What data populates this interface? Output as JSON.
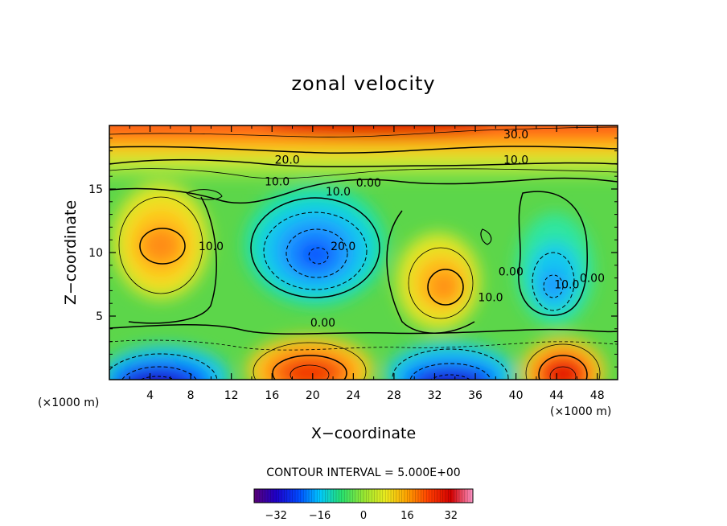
{
  "chart_data": {
    "type": "heatmap",
    "subtype": "filled-contour",
    "title": "zonal velocity",
    "xlabel": "X−coordinate",
    "ylabel": "Z−coordinate",
    "x_unit_left": "(×1000 m)",
    "x_unit_right": "(×1000 m)",
    "xlim": [
      0,
      50
    ],
    "ylim": [
      0,
      20
    ],
    "x_ticks": [
      4,
      8,
      12,
      16,
      20,
      24,
      28,
      32,
      36,
      40,
      44,
      48
    ],
    "x_tick_labels": [
      "4",
      "8",
      "12",
      "16",
      "20",
      "24",
      "28",
      "32",
      "36",
      "40",
      "44",
      "48"
    ],
    "y_ticks": [
      5,
      10,
      15
    ],
    "y_tick_labels": [
      "5",
      "10",
      "15"
    ],
    "contour_interval_text": "CONTOUR INTERVAL = 5.000E+00",
    "contour_interval": 5,
    "contour_labels": [
      {
        "text": "30.0",
        "x": 40,
        "y": 19.3
      },
      {
        "text": "20.0",
        "x": 17.5,
        "y": 17.3
      },
      {
        "text": "10.0",
        "x": 40,
        "y": 17.3
      },
      {
        "text": "10.0",
        "x": 16.5,
        "y": 15.6
      },
      {
        "text": "10.0",
        "x": 22.5,
        "y": 14.8
      },
      {
        "text": "0.00",
        "x": 25.5,
        "y": 15.5
      },
      {
        "text": "10.0",
        "x": 10,
        "y": 10.5
      },
      {
        "text": "20.0",
        "x": 23,
        "y": 10.5
      },
      {
        "text": "10.0",
        "x": 37.5,
        "y": 6.5
      },
      {
        "text": "0.00",
        "x": 39.5,
        "y": 8.5
      },
      {
        "text": "10.0",
        "x": 45,
        "y": 7.5
      },
      {
        "text": "0.00",
        "x": 47.5,
        "y": 8
      },
      {
        "text": "0.00",
        "x": 21,
        "y": 4.5
      }
    ],
    "field_features": [
      {
        "label": "upper jet",
        "x": 27,
        "z": 20,
        "value": 35
      },
      {
        "label": "positive cell",
        "x": 5,
        "z": 10.5,
        "value": 17
      },
      {
        "label": "negative cell",
        "x": 20.5,
        "z": 9.5,
        "value": -24
      },
      {
        "label": "positive cell",
        "x": 34,
        "z": 7.5,
        "value": 16
      },
      {
        "label": "negative cell",
        "x": 43.5,
        "z": 7.2,
        "value": -14
      },
      {
        "label": "bottom negative",
        "x": 5,
        "z": 0.3,
        "value": -36
      },
      {
        "label": "bottom positive",
        "x": 20,
        "z": 1.2,
        "value": 27
      },
      {
        "label": "bottom negative",
        "x": 33.5,
        "z": 0.4,
        "value": -36
      },
      {
        "label": "bottom positive",
        "x": 44,
        "z": 1,
        "value": 32
      }
    ],
    "colorbar": {
      "min": -40,
      "max": 40,
      "ticks": [
        -32,
        -16,
        0,
        16,
        32
      ],
      "tick_labels": [
        "−32",
        "−16",
        "0",
        "16",
        "32"
      ],
      "colors": [
        "#5a0078",
        "#1e00c8",
        "#0046ff",
        "#00c8ff",
        "#28e16e",
        "#96e632",
        "#ebeb1e",
        "#ffa000",
        "#ff3c00",
        "#d20000",
        "#ff96c8"
      ]
    }
  }
}
